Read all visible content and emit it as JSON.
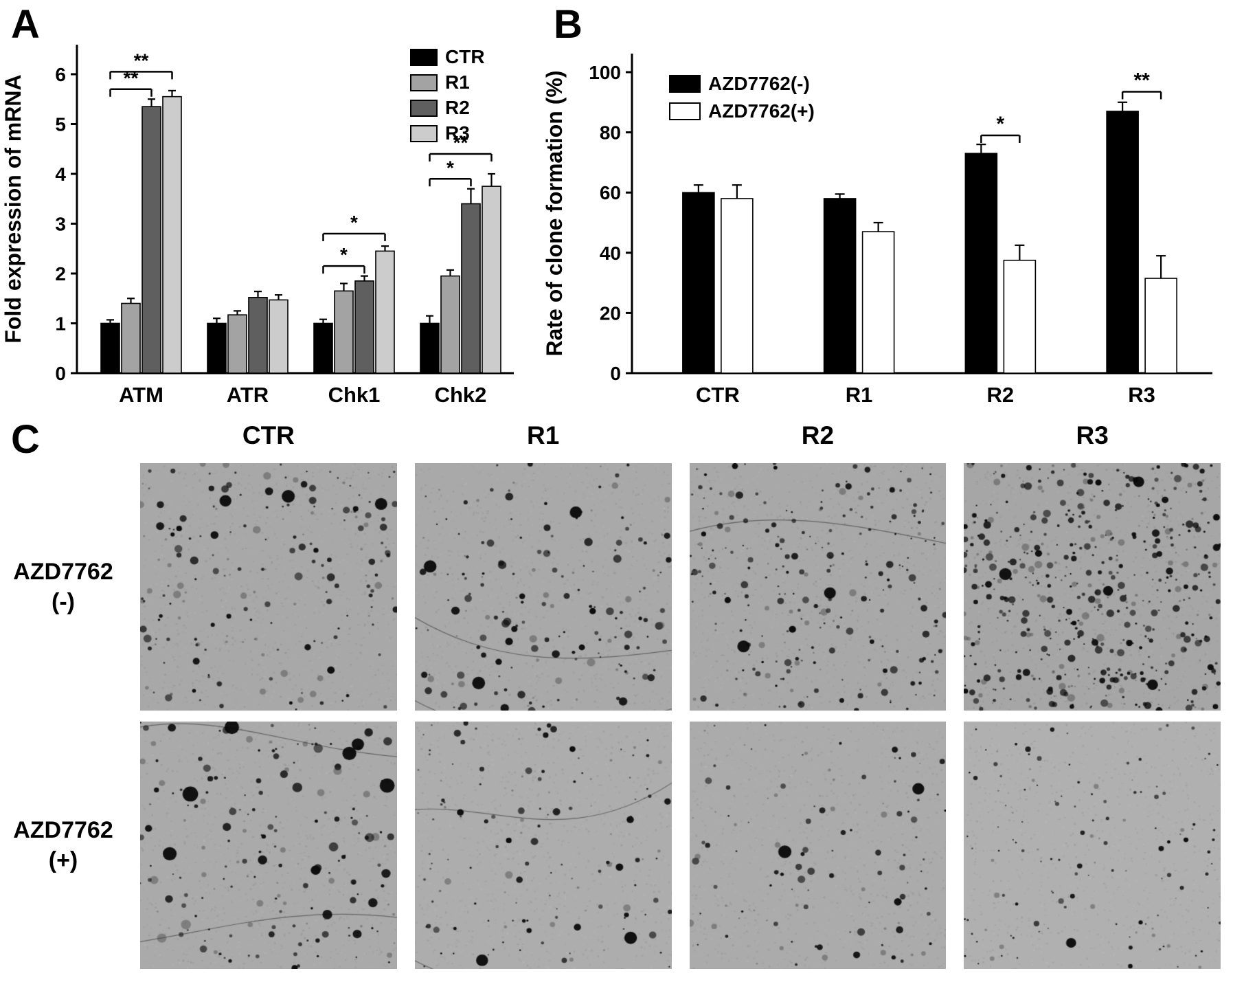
{
  "figure": {
    "panels": {
      "a": "A",
      "b": "B",
      "c": "C"
    }
  },
  "chart_data": [
    {
      "id": "panel-a",
      "type": "bar",
      "title": "",
      "xlabel": "",
      "ylabel": "Fold expression of mRNA",
      "ylim": [
        0,
        6
      ],
      "yticks": [
        0,
        1,
        2,
        3,
        4,
        5,
        6
      ],
      "grid": false,
      "legend_position": "top-right",
      "categories": [
        "ATM",
        "ATR",
        "Chk1",
        "Chk2"
      ],
      "series": [
        {
          "name": "CTR",
          "color": "#000000",
          "values": [
            1.0,
            1.0,
            1.0,
            1.0
          ],
          "errors": [
            0.07,
            0.1,
            0.08,
            0.15
          ]
        },
        {
          "name": "R1",
          "color": "#a3a3a3",
          "values": [
            1.4,
            1.17,
            1.65,
            1.95
          ],
          "errors": [
            0.1,
            0.08,
            0.15,
            0.12
          ]
        },
        {
          "name": "R2",
          "color": "#5f5f5f",
          "values": [
            5.35,
            1.52,
            1.85,
            3.4
          ],
          "errors": [
            0.15,
            0.12,
            0.1,
            0.3
          ]
        },
        {
          "name": "R3",
          "color": "#cccccc",
          "values": [
            5.55,
            1.47,
            2.45,
            3.75
          ],
          "errors": [
            0.12,
            0.1,
            0.1,
            0.25
          ]
        }
      ],
      "significance": [
        {
          "category": "ATM",
          "between": [
            "CTR",
            "R2"
          ],
          "y": 5.7,
          "label": "**"
        },
        {
          "category": "ATM",
          "between": [
            "CTR",
            "R3"
          ],
          "y": 6.05,
          "label": "**"
        },
        {
          "category": "Chk1",
          "between": [
            "CTR",
            "R2"
          ],
          "y": 2.15,
          "label": "*"
        },
        {
          "category": "Chk1",
          "between": [
            "CTR",
            "R3"
          ],
          "y": 2.8,
          "label": "*"
        },
        {
          "category": "Chk2",
          "between": [
            "CTR",
            "R2"
          ],
          "y": 3.9,
          "label": "*"
        },
        {
          "category": "Chk2",
          "between": [
            "CTR",
            "R3"
          ],
          "y": 4.4,
          "label": "**"
        }
      ]
    },
    {
      "id": "panel-b",
      "type": "bar",
      "title": "",
      "xlabel": "",
      "ylabel": "Rate of clone formation (%)",
      "ylim": [
        0,
        100
      ],
      "yticks": [
        0,
        20,
        40,
        60,
        80,
        100
      ],
      "grid": false,
      "legend_position": "top-left",
      "categories": [
        "CTR",
        "R1",
        "R2",
        "R3"
      ],
      "series": [
        {
          "name": "AZD7762(-)",
          "color": "#000000",
          "values": [
            60,
            58,
            73,
            87
          ],
          "errors": [
            2.5,
            1.5,
            3,
            3
          ]
        },
        {
          "name": "AZD7762(+)",
          "color": "#ffffff",
          "values": [
            58,
            47,
            37.5,
            31.5
          ],
          "errors": [
            4.5,
            3,
            5,
            7.5
          ]
        }
      ],
      "significance": [
        {
          "category": "R2",
          "between": [
            "AZD7762(-)",
            "AZD7762(+)"
          ],
          "y": 79,
          "label": "*"
        },
        {
          "category": "R3",
          "between": [
            "AZD7762(-)",
            "AZD7762(+)"
          ],
          "y": 93.5,
          "label": "**"
        }
      ]
    }
  ],
  "panel_c": {
    "column_headers": [
      "CTR",
      "R1",
      "R2",
      "R3"
    ],
    "rows": [
      {
        "label_line1": "AZD7762",
        "label_line2": "(-)"
      },
      {
        "label_line1": "AZD7762",
        "label_line2": "(+)"
      }
    ],
    "micrographs": [
      {
        "row": 0,
        "col": 0,
        "name": "CTR AZD7762(-)",
        "seed": 11,
        "dots": 190,
        "rmin": 1.2,
        "rmax": 6,
        "big": 3,
        "scratches": 0,
        "bg": "#a8a8a8"
      },
      {
        "row": 0,
        "col": 1,
        "name": "R1 AZD7762(-)",
        "seed": 22,
        "dots": 170,
        "rmin": 1.2,
        "rmax": 6,
        "big": 3,
        "scratches": 2,
        "bg": "#a9a9a9"
      },
      {
        "row": 0,
        "col": 2,
        "name": "R2 AZD7762(-)",
        "seed": 33,
        "dots": 250,
        "rmin": 1.1,
        "rmax": 5.5,
        "big": 2,
        "scratches": 1,
        "bg": "#a8a8a8"
      },
      {
        "row": 0,
        "col": 3,
        "name": "R3 AZD7762(-)",
        "seed": 44,
        "dots": 540,
        "rmin": 1.1,
        "rmax": 5.5,
        "big": 4,
        "scratches": 0,
        "bg": "#a6a6a6"
      },
      {
        "row": 1,
        "col": 0,
        "name": "CTR AZD7762(+)",
        "seed": 55,
        "dots": 180,
        "rmin": 1.2,
        "rmax": 7,
        "big": 6,
        "scratches": 2,
        "bg": "#aaaaaa"
      },
      {
        "row": 1,
        "col": 1,
        "name": "R1 AZD7762(+)",
        "seed": 66,
        "dots": 135,
        "rmin": 1.1,
        "rmax": 5.5,
        "big": 2,
        "scratches": 2,
        "bg": "#adadad"
      },
      {
        "row": 1,
        "col": 2,
        "name": "R2 AZD7762(+)",
        "seed": 77,
        "dots": 110,
        "rmin": 1.1,
        "rmax": 5.5,
        "big": 2,
        "scratches": 0,
        "bg": "#ababab"
      },
      {
        "row": 1,
        "col": 3,
        "name": "R3 AZD7762(+)",
        "seed": 88,
        "dots": 130,
        "rmin": 1.0,
        "rmax": 4,
        "big": 1,
        "scratches": 0,
        "bg": "#b0b0b0"
      }
    ]
  }
}
